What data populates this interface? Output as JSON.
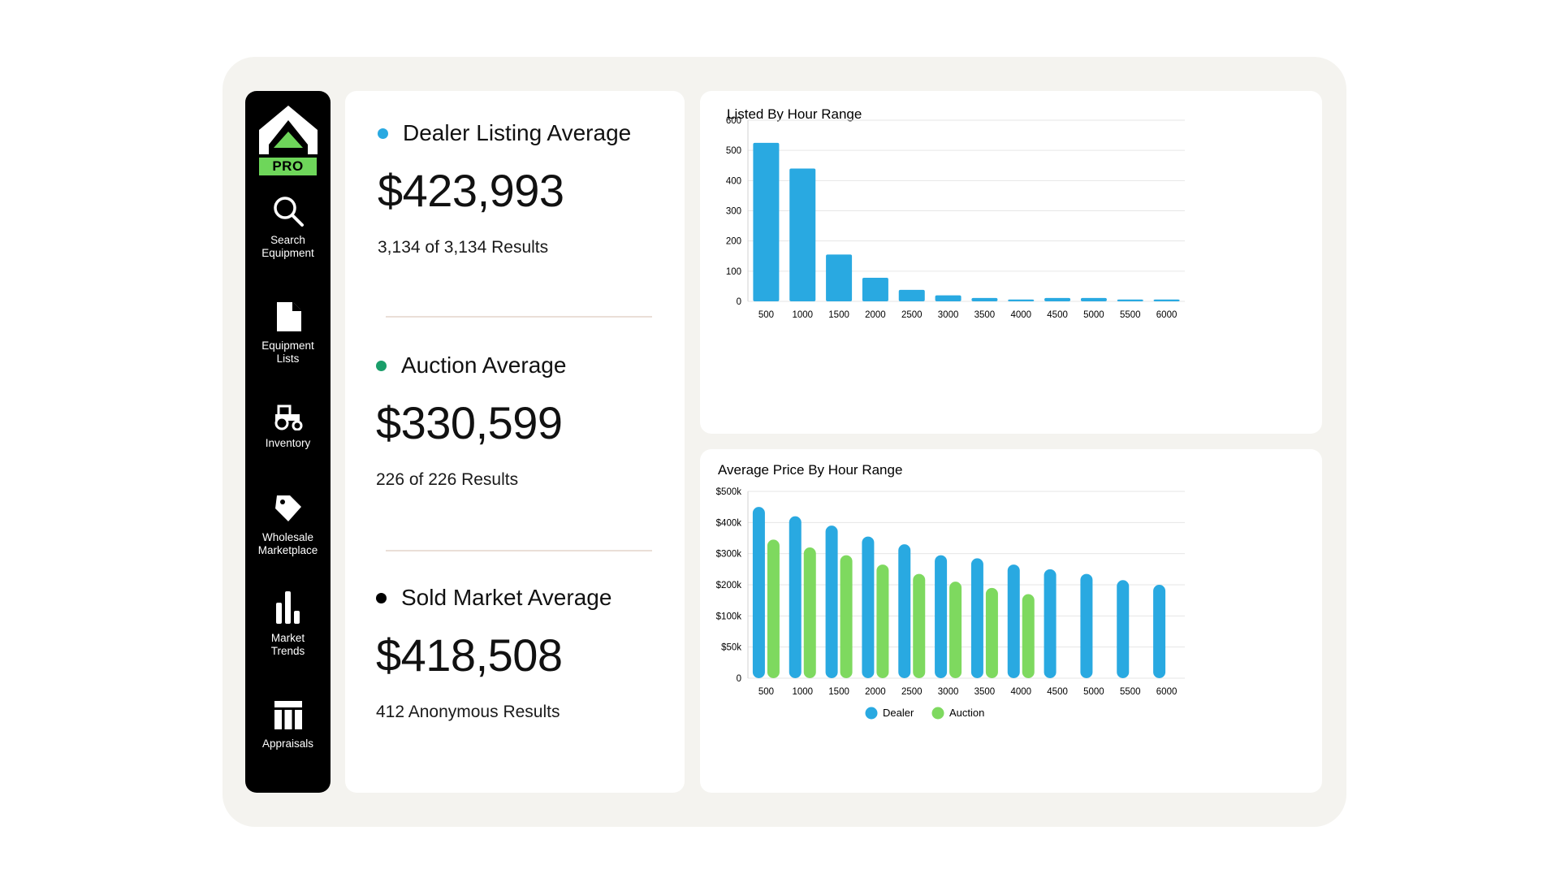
{
  "brand": {
    "badge": "PRO"
  },
  "nav": [
    {
      "label": "Search\nEquipment",
      "icon": "search-icon"
    },
    {
      "label": "Equipment\nLists",
      "icon": "document-icon"
    },
    {
      "label": "Inventory",
      "icon": "tractor-icon"
    },
    {
      "label": "Wholesale\nMarketplace",
      "icon": "tag-icon"
    },
    {
      "label": "Market\nTrends",
      "icon": "bar-chart-icon"
    },
    {
      "label": "Appraisals",
      "icon": "table-icon"
    }
  ],
  "stats": [
    {
      "title": "Dealer Listing Average",
      "value": "$423,993",
      "sub": "3,134 of 3,134 Results",
      "color": "#29a9e1"
    },
    {
      "title": "Auction Average",
      "value": "$330,599",
      "sub": "226 of 226 Results",
      "color": "#1a9e6a"
    },
    {
      "title": "Sold Market Average",
      "value": "$418,508",
      "sub": "412 Anonymous Results",
      "color": "#000000"
    }
  ],
  "chart_data": [
    {
      "type": "bar",
      "title": "Listed By Hour Range",
      "categories": [
        "500",
        "1000",
        "1500",
        "2000",
        "2500",
        "3000",
        "3500",
        "4000",
        "4500",
        "5000",
        "5500",
        "6000"
      ],
      "values": [
        525,
        440,
        155,
        78,
        38,
        20,
        11,
        6,
        11,
        11,
        6,
        6
      ],
      "ylim": [
        0,
        600
      ],
      "yticks": [
        "0",
        "100",
        "200",
        "300",
        "400",
        "500",
        "600"
      ],
      "grid": true,
      "color": "#29a9e1"
    },
    {
      "type": "bar",
      "title": "Average Price By Hour Range",
      "categories": [
        "500",
        "1000",
        "1500",
        "2000",
        "2500",
        "3000",
        "3500",
        "4000",
        "4500",
        "5000",
        "5500",
        "6000"
      ],
      "series": [
        {
          "name": "Dealer",
          "color": "#29a9e1",
          "values": [
            450000,
            420000,
            390000,
            355000,
            330000,
            295000,
            285000,
            265000,
            250000,
            235000,
            215000,
            200000
          ]
        },
        {
          "name": "Auction",
          "color": "#7ed95f",
          "values": [
            345000,
            320000,
            295000,
            265000,
            235000,
            210000,
            190000,
            170000,
            null,
            null,
            null,
            null
          ]
        }
      ],
      "ylim": [
        0,
        500000
      ],
      "yticks": [
        "0",
        "$50k",
        "$100k",
        "$200k",
        "$300k",
        "$400k",
        "$500k"
      ],
      "grid": true,
      "legend": "bottom"
    }
  ]
}
